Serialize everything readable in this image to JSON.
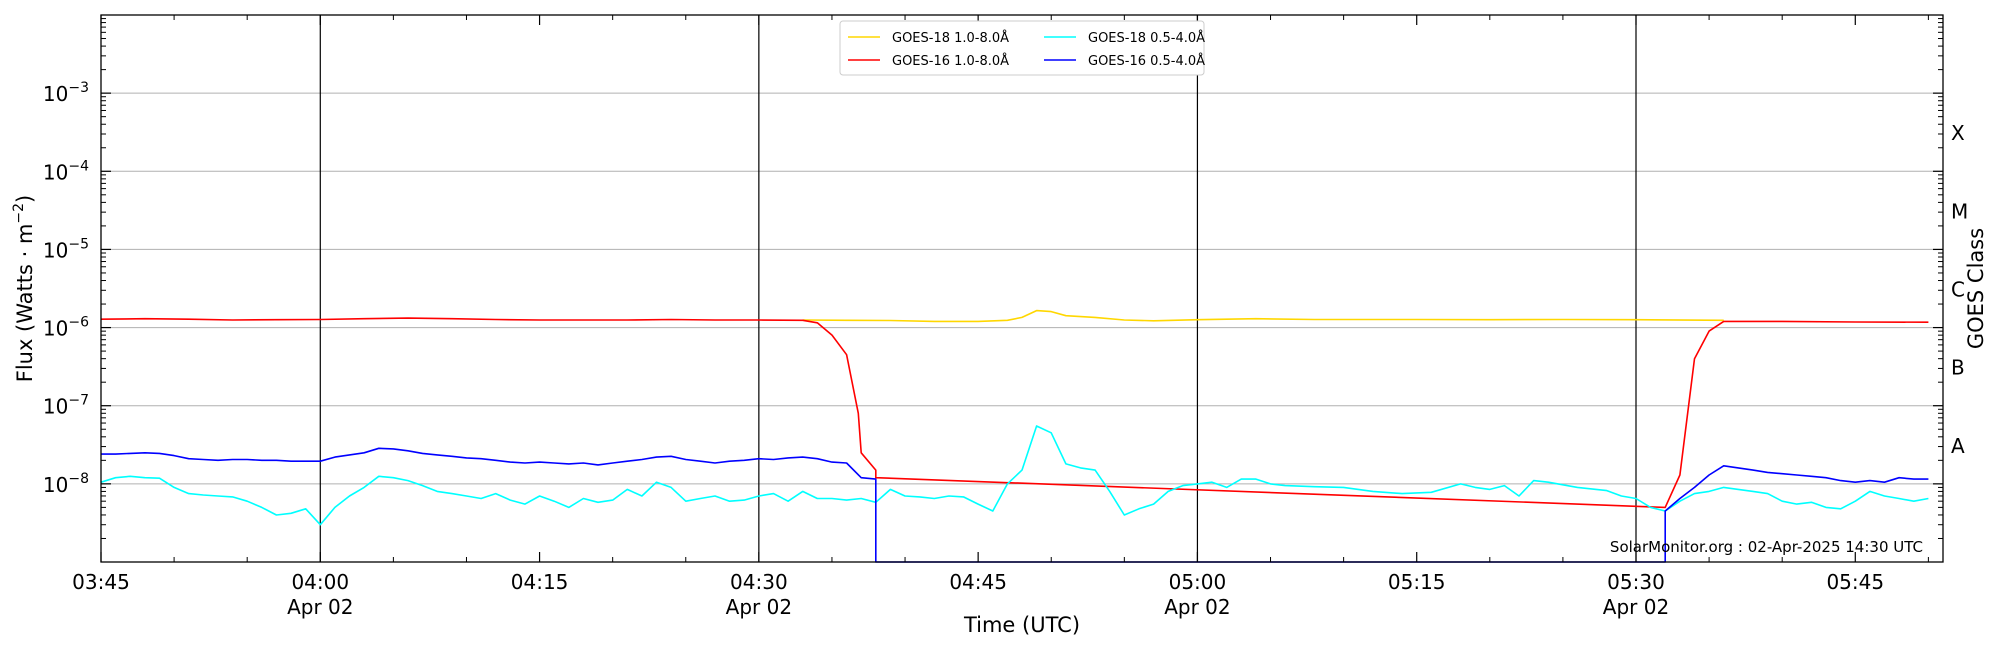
{
  "chart_data": {
    "type": "line",
    "xlabel": "Time (UTC)",
    "ylabel": "Flux (Watts · m⁻²)",
    "ylabel_right": "GOES Class",
    "y_scale": "log",
    "xlim": [
      "03:45",
      "05:51"
    ],
    "ylim": [
      1e-09,
      0.01
    ],
    "grid": "horizontal at decades; vertical at 04:00, 04:30, 05:00, 05:30",
    "legend_position": "top-center",
    "x_ticks": [
      {
        "time": "03:45",
        "label": "03:45",
        "date": ""
      },
      {
        "time": "04:00",
        "label": "04:00",
        "date": "Apr 02"
      },
      {
        "time": "04:15",
        "label": "04:15",
        "date": ""
      },
      {
        "time": "04:30",
        "label": "04:30",
        "date": "Apr 02"
      },
      {
        "time": "04:45",
        "label": "04:45",
        "date": ""
      },
      {
        "time": "05:00",
        "label": "05:00",
        "date": "Apr 02"
      },
      {
        "time": "05:15",
        "label": "05:15",
        "date": ""
      },
      {
        "time": "05:30",
        "label": "05:30",
        "date": "Apr 02"
      },
      {
        "time": "05:45",
        "label": "05:45",
        "date": ""
      }
    ],
    "y_ticks": [
      {
        "value": 1e-08,
        "base": "10",
        "exp": "−8"
      },
      {
        "value": 1e-07,
        "base": "10",
        "exp": "−7"
      },
      {
        "value": 1e-06,
        "base": "10",
        "exp": "−6"
      },
      {
        "value": 1e-05,
        "base": "10",
        "exp": "−5"
      },
      {
        "value": 0.0001,
        "base": "10",
        "exp": "−4"
      },
      {
        "value": 0.001,
        "base": "10",
        "exp": "−3"
      }
    ],
    "goes_classes": [
      {
        "label": "A",
        "value": 3.16e-08
      },
      {
        "label": "B",
        "value": 3.16e-07
      },
      {
        "label": "C",
        "value": 3.16e-06
      },
      {
        "label": "M",
        "value": 3.16e-05
      },
      {
        "label": "X",
        "value": 0.000316
      }
    ],
    "series": [
      {
        "name": "GOES-18 1.0-8.0Å",
        "color": "#ffd700",
        "points": [
          [
            "04:33",
            1.25e-06
          ],
          [
            "04:36",
            1.24e-06
          ],
          [
            "04:39",
            1.23e-06
          ],
          [
            "04:42",
            1.2e-06
          ],
          [
            "04:45",
            1.2e-06
          ],
          [
            "04:47",
            1.24e-06
          ],
          [
            "04:48",
            1.35e-06
          ],
          [
            "04:49",
            1.65e-06
          ],
          [
            "04:50",
            1.6e-06
          ],
          [
            "04:51",
            1.42e-06
          ],
          [
            "04:53",
            1.35e-06
          ],
          [
            "04:55",
            1.25e-06
          ],
          [
            "04:57",
            1.22e-06
          ],
          [
            "05:00",
            1.26e-06
          ],
          [
            "05:04",
            1.3e-06
          ],
          [
            "05:08",
            1.27e-06
          ],
          [
            "05:15",
            1.27e-06
          ],
          [
            "05:20",
            1.26e-06
          ],
          [
            "05:25",
            1.27e-06
          ],
          [
            "05:30",
            1.26e-06
          ],
          [
            "05:36",
            1.24e-06
          ]
        ]
      },
      {
        "name": "GOES-16 1.0-8.0Å",
        "color": "#ff0000",
        "points": [
          [
            "03:45",
            1.28e-06
          ],
          [
            "03:48",
            1.3e-06
          ],
          [
            "03:51",
            1.28e-06
          ],
          [
            "03:54",
            1.25e-06
          ],
          [
            "03:57",
            1.26e-06
          ],
          [
            "04:00",
            1.27e-06
          ],
          [
            "04:03",
            1.3e-06
          ],
          [
            "04:06",
            1.32e-06
          ],
          [
            "04:09",
            1.3e-06
          ],
          [
            "04:12",
            1.27e-06
          ],
          [
            "04:15",
            1.25e-06
          ],
          [
            "04:18",
            1.25e-06
          ],
          [
            "04:21",
            1.25e-06
          ],
          [
            "04:24",
            1.27e-06
          ],
          [
            "04:27",
            1.25e-06
          ],
          [
            "04:30",
            1.25e-06
          ],
          [
            "04:33",
            1.24e-06
          ],
          [
            "04:34",
            1.15e-06
          ],
          [
            "04:35",
            8e-07
          ],
          [
            "04:36",
            4.5e-07
          ],
          [
            "04:36.8",
            8e-08
          ],
          [
            "04:37",
            2.5e-08
          ],
          [
            "04:38",
            1.5e-08
          ],
          [
            "04:38",
            1.2e-08
          ],
          [
            "05:32",
            5e-09
          ],
          [
            "05:33",
            1.3e-08
          ],
          [
            "05:34",
            4e-07
          ],
          [
            "05:35",
            9e-07
          ],
          [
            "05:36",
            1.2e-06
          ],
          [
            "05:40",
            1.2e-06
          ],
          [
            "05:45",
            1.18e-06
          ],
          [
            "05:50",
            1.17e-06
          ]
        ]
      },
      {
        "name": "GOES-18 0.5-4.0Å",
        "color": "#00ffff",
        "points": [
          [
            "03:45",
            1.05e-08
          ],
          [
            "03:46",
            1.2e-08
          ],
          [
            "03:47",
            1.25e-08
          ],
          [
            "03:48",
            1.2e-08
          ],
          [
            "03:49",
            1.18e-08
          ],
          [
            "03:50",
            9e-09
          ],
          [
            "03:51",
            7.5e-09
          ],
          [
            "03:52",
            7.2e-09
          ],
          [
            "03:53",
            7e-09
          ],
          [
            "03:54",
            6.8e-09
          ],
          [
            "03:55",
            6e-09
          ],
          [
            "03:56",
            5e-09
          ],
          [
            "03:57",
            4e-09
          ],
          [
            "03:58",
            4.2e-09
          ],
          [
            "03:59",
            4.8e-09
          ],
          [
            "04:00",
            3e-09
          ],
          [
            "04:01",
            5e-09
          ],
          [
            "04:02",
            7e-09
          ],
          [
            "04:03",
            9e-09
          ],
          [
            "04:04",
            1.25e-08
          ],
          [
            "04:05",
            1.2e-08
          ],
          [
            "04:06",
            1.1e-08
          ],
          [
            "04:07",
            9.5e-09
          ],
          [
            "04:08",
            8e-09
          ],
          [
            "04:09",
            7.5e-09
          ],
          [
            "04:10",
            7e-09
          ],
          [
            "04:11",
            6.5e-09
          ],
          [
            "04:12",
            7.5e-09
          ],
          [
            "04:13",
            6.2e-09
          ],
          [
            "04:14",
            5.5e-09
          ],
          [
            "04:15",
            7e-09
          ],
          [
            "04:16",
            6e-09
          ],
          [
            "04:17",
            5e-09
          ],
          [
            "04:18",
            6.5e-09
          ],
          [
            "04:19",
            5.8e-09
          ],
          [
            "04:20",
            6.2e-09
          ],
          [
            "04:21",
            8.5e-09
          ],
          [
            "04:22",
            7e-09
          ],
          [
            "04:23",
            1.05e-08
          ],
          [
            "04:24",
            9e-09
          ],
          [
            "04:25",
            6e-09
          ],
          [
            "04:26",
            6.5e-09
          ],
          [
            "04:27",
            7e-09
          ],
          [
            "04:28",
            6e-09
          ],
          [
            "04:29",
            6.2e-09
          ],
          [
            "04:30",
            7e-09
          ],
          [
            "04:31",
            7.5e-09
          ],
          [
            "04:32",
            6e-09
          ],
          [
            "04:33",
            8e-09
          ],
          [
            "04:34",
            6.5e-09
          ],
          [
            "04:35",
            6.5e-09
          ],
          [
            "04:36",
            6.2e-09
          ],
          [
            "04:37",
            6.5e-09
          ],
          [
            "04:38",
            5.8e-09
          ],
          [
            "04:39",
            8.5e-09
          ],
          [
            "04:40",
            7e-09
          ],
          [
            "04:41",
            6.8e-09
          ],
          [
            "04:42",
            6.5e-09
          ],
          [
            "04:43",
            7e-09
          ],
          [
            "04:44",
            6.8e-09
          ],
          [
            "04:45",
            5.5e-09
          ],
          [
            "04:46",
            4.5e-09
          ],
          [
            "04:47",
            1e-08
          ],
          [
            "04:48",
            1.5e-08
          ],
          [
            "04:49",
            5.5e-08
          ],
          [
            "04:50",
            4.5e-08
          ],
          [
            "04:51",
            1.8e-08
          ],
          [
            "04:52",
            1.6e-08
          ],
          [
            "04:53",
            1.5e-08
          ],
          [
            "04:54",
            8e-09
          ],
          [
            "04:55",
            4e-09
          ],
          [
            "04:56",
            4.8e-09
          ],
          [
            "04:57",
            5.5e-09
          ],
          [
            "04:58",
            8e-09
          ],
          [
            "04:59",
            9.5e-09
          ],
          [
            "05:00",
            1e-08
          ],
          [
            "05:01",
            1.05e-08
          ],
          [
            "05:02",
            9e-09
          ],
          [
            "05:03",
            1.15e-08
          ],
          [
            "05:04",
            1.15e-08
          ],
          [
            "05:05",
            1e-08
          ],
          [
            "05:06",
            9.5e-09
          ],
          [
            "05:08",
            9.2e-09
          ],
          [
            "05:10",
            9e-09
          ],
          [
            "05:12",
            8e-09
          ],
          [
            "05:14",
            7.5e-09
          ],
          [
            "05:16",
            7.8e-09
          ],
          [
            "05:18",
            1e-08
          ],
          [
            "05:19",
            9e-09
          ],
          [
            "05:20",
            8.5e-09
          ],
          [
            "05:21",
            9.5e-09
          ],
          [
            "05:22",
            7e-09
          ],
          [
            "05:23",
            1.1e-08
          ],
          [
            "05:24",
            1.05e-08
          ],
          [
            "05:26",
            9e-09
          ],
          [
            "05:28",
            8.2e-09
          ],
          [
            "05:29",
            7e-09
          ],
          [
            "05:30",
            6.5e-09
          ],
          [
            "05:31",
            5e-09
          ],
          [
            "05:32",
            4.5e-09
          ],
          [
            "05:33",
            6e-09
          ],
          [
            "05:34",
            7.5e-09
          ],
          [
            "05:35",
            8e-09
          ],
          [
            "05:36",
            9e-09
          ],
          [
            "05:37",
            8.5e-09
          ],
          [
            "05:38",
            8e-09
          ],
          [
            "05:39",
            7.5e-09
          ],
          [
            "05:40",
            6e-09
          ],
          [
            "05:41",
            5.5e-09
          ],
          [
            "05:42",
            5.8e-09
          ],
          [
            "05:43",
            5e-09
          ],
          [
            "05:44",
            4.8e-09
          ],
          [
            "05:45",
            6e-09
          ],
          [
            "05:46",
            8e-09
          ],
          [
            "05:47",
            7e-09
          ],
          [
            "05:48",
            6.5e-09
          ],
          [
            "05:49",
            6e-09
          ],
          [
            "05:50",
            6.5e-09
          ]
        ]
      },
      {
        "name": "GOES-16 0.5-4.0Å",
        "color": "#0000ff",
        "points": [
          [
            "03:45",
            2.4e-08
          ],
          [
            "03:46",
            2.4e-08
          ],
          [
            "03:47",
            2.45e-08
          ],
          [
            "03:48",
            2.5e-08
          ],
          [
            "03:49",
            2.45e-08
          ],
          [
            "03:50",
            2.3e-08
          ],
          [
            "03:51",
            2.1e-08
          ],
          [
            "03:52",
            2.05e-08
          ],
          [
            "03:53",
            2e-08
          ],
          [
            "03:54",
            2.05e-08
          ],
          [
            "03:55",
            2.05e-08
          ],
          [
            "03:56",
            2e-08
          ],
          [
            "03:57",
            2e-08
          ],
          [
            "03:58",
            1.95e-08
          ],
          [
            "03:59",
            1.95e-08
          ],
          [
            "04:00",
            1.95e-08
          ],
          [
            "04:01",
            2.2e-08
          ],
          [
            "04:02",
            2.35e-08
          ],
          [
            "04:03",
            2.5e-08
          ],
          [
            "04:04",
            2.85e-08
          ],
          [
            "04:05",
            2.8e-08
          ],
          [
            "04:06",
            2.65e-08
          ],
          [
            "04:07",
            2.45e-08
          ],
          [
            "04:08",
            2.35e-08
          ],
          [
            "04:09",
            2.25e-08
          ],
          [
            "04:10",
            2.15e-08
          ],
          [
            "04:11",
            2.1e-08
          ],
          [
            "04:12",
            2e-08
          ],
          [
            "04:13",
            1.9e-08
          ],
          [
            "04:14",
            1.85e-08
          ],
          [
            "04:15",
            1.9e-08
          ],
          [
            "04:16",
            1.85e-08
          ],
          [
            "04:17",
            1.8e-08
          ],
          [
            "04:18",
            1.85e-08
          ],
          [
            "04:19",
            1.75e-08
          ],
          [
            "04:20",
            1.85e-08
          ],
          [
            "04:21",
            1.95e-08
          ],
          [
            "04:22",
            2.05e-08
          ],
          [
            "04:23",
            2.2e-08
          ],
          [
            "04:24",
            2.25e-08
          ],
          [
            "04:25",
            2.05e-08
          ],
          [
            "04:26",
            1.95e-08
          ],
          [
            "04:27",
            1.85e-08
          ],
          [
            "04:28",
            1.95e-08
          ],
          [
            "04:29",
            2e-08
          ],
          [
            "04:30",
            2.1e-08
          ],
          [
            "04:31",
            2.05e-08
          ],
          [
            "04:32",
            2.15e-08
          ],
          [
            "04:33",
            2.2e-08
          ],
          [
            "04:34",
            2.1e-08
          ],
          [
            "04:35",
            1.9e-08
          ],
          [
            "04:36",
            1.85e-08
          ],
          [
            "04:37",
            1.2e-08
          ],
          [
            "04:38",
            1.15e-08
          ],
          [
            "04:38",
            1e-09
          ],
          [
            "05:32",
            1e-09
          ],
          [
            "05:32",
            4.5e-09
          ],
          [
            "05:33",
            6.5e-09
          ],
          [
            "05:34",
            9e-09
          ],
          [
            "05:35",
            1.3e-08
          ],
          [
            "05:36",
            1.7e-08
          ],
          [
            "05:37",
            1.6e-08
          ],
          [
            "05:38",
            1.5e-08
          ],
          [
            "05:39",
            1.4e-08
          ],
          [
            "05:40",
            1.35e-08
          ],
          [
            "05:41",
            1.3e-08
          ],
          [
            "05:42",
            1.25e-08
          ],
          [
            "05:43",
            1.2e-08
          ],
          [
            "05:44",
            1.1e-08
          ],
          [
            "05:45",
            1.05e-08
          ],
          [
            "05:46",
            1.1e-08
          ],
          [
            "05:47",
            1.05e-08
          ],
          [
            "05:48",
            1.2e-08
          ],
          [
            "05:49",
            1.15e-08
          ],
          [
            "05:50",
            1.15e-08
          ]
        ]
      }
    ],
    "annotations": [
      "SolarMonitor.org : 02-Apr-2025 14:30 UTC"
    ]
  }
}
